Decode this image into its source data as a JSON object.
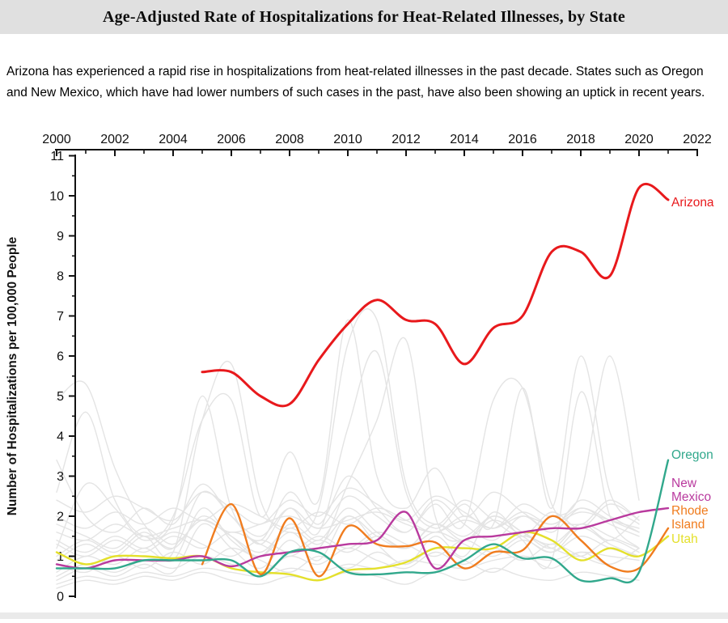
{
  "header": {
    "title": "Age-Adjusted Rate of Hospitalizations for Heat-Related Illnesses, by State"
  },
  "intro": {
    "text": "Arizona has experienced a rapid rise in hospitalizations from heat-related illnesses in the past decade. States such as Oregon and New Mexico, which have had lower numbers of such cases in the past, have also been showing an uptick in recent years."
  },
  "chart_data": {
    "type": "line",
    "title": "Age-Adjusted Rate of Hospitalizations for Heat-Related Illnesses, by State",
    "xlabel": "",
    "ylabel": "Number of Hospitalizations per 100,000 People",
    "xlim": [
      2000,
      2022
    ],
    "ylim": [
      0,
      11
    ],
    "x_ticks": [
      2000,
      2002,
      2004,
      2006,
      2008,
      2010,
      2012,
      2014,
      2016,
      2018,
      2020,
      2022
    ],
    "y_ticks": [
      0,
      1,
      2,
      3,
      4,
      5,
      6,
      7,
      8,
      9,
      10,
      11
    ],
    "grid": false,
    "legend_position": "right-edge-labels",
    "axis_color": "#111111",
    "highlighted_series": [
      {
        "name": "Arizona",
        "label_lines": [
          "Arizona"
        ],
        "color": "#e8191c",
        "start_year": 2005,
        "values": [
          5.6,
          5.6,
          5.0,
          4.8,
          5.9,
          6.8,
          7.4,
          6.9,
          6.8,
          5.8,
          6.7,
          7.0,
          8.6,
          8.6,
          8.0,
          10.2,
          9.9
        ]
      },
      {
        "name": "Oregon",
        "label_lines": [
          "Oregon"
        ],
        "color": "#31a88c",
        "start_year": 2000,
        "values": [
          0.7,
          0.7,
          0.7,
          0.9,
          0.9,
          0.9,
          0.9,
          0.5,
          1.1,
          1.1,
          0.6,
          0.55,
          0.6,
          0.6,
          0.9,
          1.3,
          0.95,
          0.95,
          0.4,
          0.45,
          0.6,
          3.4
        ]
      },
      {
        "name": "New Mexico",
        "label_lines": [
          "New",
          "Mexico"
        ],
        "color": "#b93a9e",
        "start_year": 2000,
        "values": [
          0.8,
          0.7,
          0.9,
          0.9,
          0.9,
          1.0,
          0.75,
          1.0,
          1.1,
          1.2,
          1.3,
          1.4,
          2.1,
          0.7,
          1.4,
          1.5,
          1.6,
          1.7,
          1.7,
          1.9,
          2.1,
          2.2
        ]
      },
      {
        "name": "Rhode Island",
        "label_lines": [
          "Rhode",
          "Island"
        ],
        "color": "#f07c1e",
        "start_year": 2005,
        "values": [
          0.8,
          2.3,
          0.55,
          1.95,
          0.5,
          1.75,
          1.3,
          1.25,
          1.35,
          0.7,
          1.1,
          1.15,
          2.0,
          1.4,
          0.75,
          0.7,
          1.7
        ]
      },
      {
        "name": "Utah",
        "label_lines": [
          "Utah"
        ],
        "color": "#e4e02b",
        "start_year": 2000,
        "values": [
          1.1,
          0.8,
          1.0,
          1.0,
          0.95,
          1.0,
          0.7,
          0.6,
          0.55,
          0.4,
          0.65,
          0.7,
          0.85,
          1.2,
          1.2,
          1.2,
          1.6,
          1.4,
          0.9,
          1.2,
          1.0,
          1.5
        ]
      }
    ],
    "background_series": {
      "name": "other-states-unlabeled",
      "color": "#e4e4e4",
      "start_year": 2000,
      "series": [
        [
          0.3,
          0.5,
          0.4,
          0.6,
          0.5,
          0.7,
          0.6,
          0.5,
          0.7,
          0.6,
          0.8,
          0.7,
          0.9,
          0.8,
          0.7,
          0.9,
          1.0,
          0.9,
          1.1,
          1.0,
          0.9
        ],
        [
          1.6,
          1.4,
          1.8,
          1.5,
          1.7,
          1.9,
          1.6,
          1.8,
          2.0,
          1.7,
          1.9,
          2.1,
          1.8,
          1.6,
          1.9,
          1.7,
          2.0,
          1.8,
          2.1,
          1.9,
          1.7
        ],
        [
          4.9,
          5.3,
          3.2,
          1.8,
          1.2,
          2.0,
          1.5,
          1.0,
          1.8,
          1.4,
          2.2,
          1.6,
          1.2,
          1.8,
          1.5,
          2.0,
          1.6,
          1.3,
          1.8,
          1.5,
          1.2
        ],
        [
          2.6,
          4.6,
          2.4,
          1.5,
          1.9,
          5.0,
          2.2,
          1.4,
          2.6,
          1.8,
          3.0,
          2.2,
          1.6,
          2.4,
          1.8,
          1.4,
          2.0,
          1.6,
          2.2,
          1.8,
          1.5
        ],
        [
          0.9,
          1.3,
          1.0,
          1.5,
          1.1,
          4.4,
          5.8,
          2.4,
          1.6,
          2.2,
          6.3,
          6.9,
          2.8,
          1.8,
          2.4,
          1.9,
          1.5,
          2.1,
          1.7,
          2.3,
          1.9
        ],
        [
          1.2,
          2.8,
          2.2,
          1.4,
          2.0,
          4.4,
          4.9,
          2.0,
          3.6,
          2.4,
          6.9,
          3.0,
          2.2,
          3.2,
          2.0,
          2.6,
          2.1,
          1.7,
          2.4,
          2.0,
          1.6
        ],
        [
          0.5,
          0.8,
          0.6,
          0.9,
          0.7,
          1.0,
          0.8,
          0.6,
          1.0,
          0.8,
          1.2,
          0.9,
          0.7,
          1.1,
          0.8,
          1.2,
          0.9,
          1.3,
          1.0,
          0.8,
          1.2
        ],
        [
          2.0,
          1.7,
          2.1,
          1.8,
          2.2,
          1.9,
          2.3,
          2.0,
          1.7,
          2.1,
          1.8,
          2.2,
          1.9,
          1.6,
          2.0,
          1.7,
          2.1,
          1.8,
          2.2,
          1.9,
          1.6
        ],
        [
          1.4,
          1.1,
          1.5,
          1.2,
          1.6,
          1.3,
          1.0,
          1.4,
          1.1,
          1.5,
          1.2,
          1.6,
          1.3,
          1.0,
          1.4,
          1.1,
          1.5,
          1.2,
          1.0,
          1.4,
          1.1
        ],
        [
          0.8,
          0.6,
          1.0,
          0.7,
          1.1,
          0.8,
          1.2,
          0.9,
          0.6,
          1.0,
          0.7,
          1.1,
          0.8,
          1.2,
          0.9,
          0.6,
          1.0,
          0.7,
          1.1,
          0.8,
          1.2
        ],
        [
          1.0,
          1.4,
          1.1,
          1.6,
          1.2,
          2.6,
          2.0,
          1.3,
          2.2,
          1.6,
          4.2,
          6.1,
          2.6,
          1.7,
          2.3,
          1.8,
          5.2,
          2.2,
          6.0,
          2.6,
          1.8
        ],
        [
          0.4,
          0.7,
          0.5,
          0.8,
          0.6,
          1.8,
          1.2,
          0.7,
          1.4,
          0.9,
          2.0,
          1.3,
          0.8,
          1.5,
          1.0,
          2.1,
          1.4,
          0.9,
          5.1,
          2.0,
          1.2
        ],
        [
          2.4,
          2.1,
          2.5,
          2.2,
          1.9,
          2.6,
          2.2,
          1.8,
          2.4,
          2.0,
          2.7,
          2.3,
          1.9,
          2.5,
          2.1,
          1.7,
          2.3,
          2.0,
          2.6,
          6.0,
          2.4
        ],
        [
          0.2,
          0.4,
          0.3,
          0.5,
          0.4,
          0.6,
          0.4,
          0.3,
          0.5,
          0.4,
          0.6,
          0.5,
          0.3,
          0.6,
          0.4,
          0.7,
          0.5,
          0.4,
          0.6,
          0.5,
          0.4
        ],
        [
          3.4,
          2.0,
          1.6,
          2.2,
          1.8,
          2.8,
          2.0,
          1.5,
          2.2,
          1.7,
          2.5,
          2.0,
          1.6,
          2.3,
          1.8,
          4.9,
          5.2,
          2.3,
          1.8,
          2.4,
          1.9
        ],
        [
          1.8,
          1.5,
          1.2,
          1.7,
          1.3,
          1.9,
          1.5,
          1.1,
          1.7,
          1.3,
          2.0,
          1.5,
          1.2,
          1.8,
          1.4,
          2.0,
          1.6,
          1.2,
          1.8,
          1.4,
          2.0
        ],
        [
          0.6,
          1.0,
          0.8,
          1.2,
          0.9,
          2.2,
          1.4,
          1.0,
          1.6,
          1.2,
          2.8,
          4.4,
          6.4,
          2.0,
          1.4,
          1.9,
          1.5,
          1.1,
          1.7,
          1.3,
          1.0
        ],
        [
          1.3,
          1.0,
          1.4,
          1.1,
          1.5,
          1.2,
          1.6,
          1.3,
          1.0,
          1.4,
          1.1,
          1.5,
          1.2,
          1.6,
          1.3,
          1.0,
          1.4,
          1.1,
          1.5,
          1.2,
          1.0
        ]
      ]
    }
  }
}
